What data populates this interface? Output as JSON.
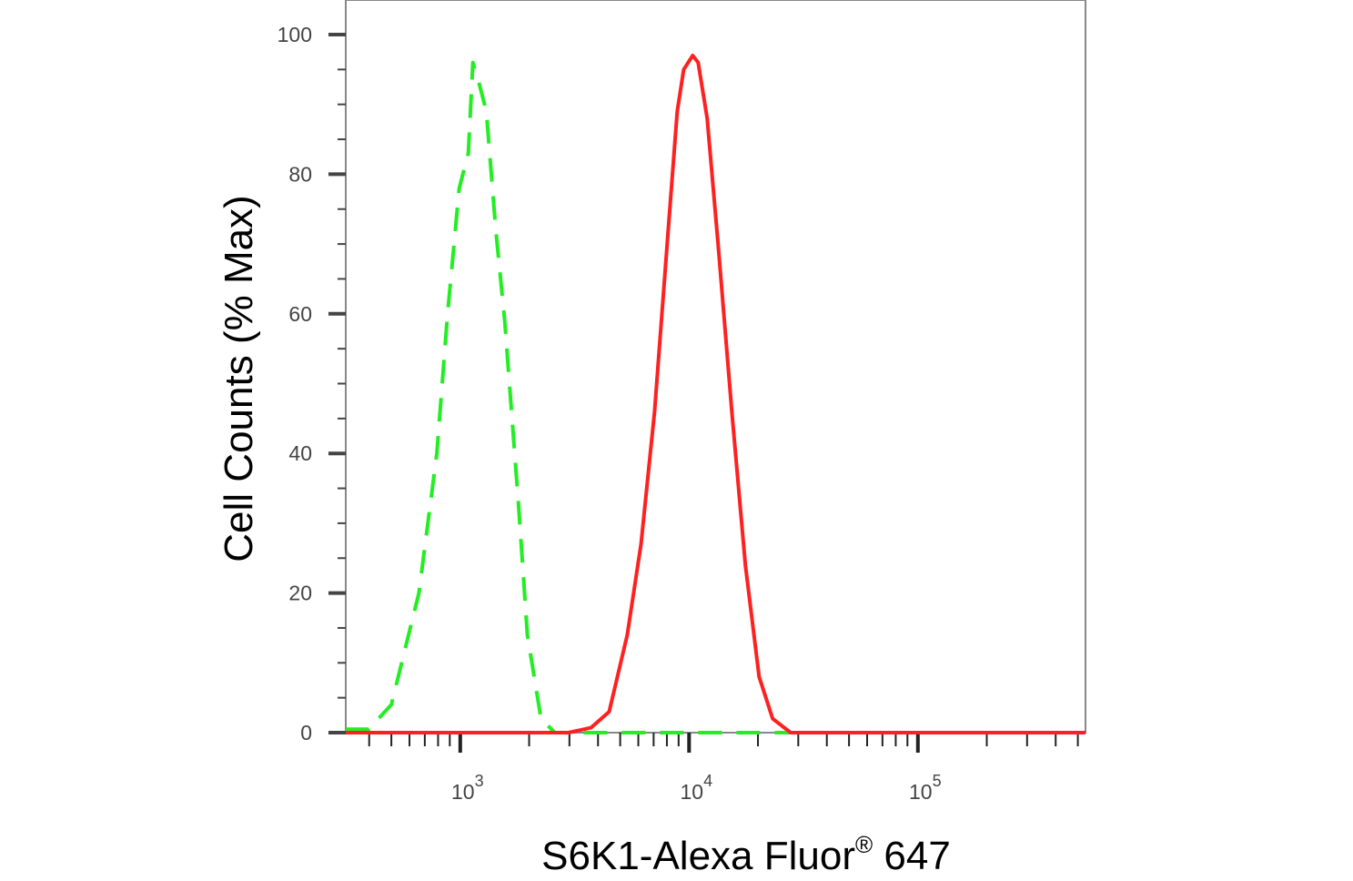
{
  "chart_data": {
    "type": "line",
    "title": "",
    "xlabel": "S6K1-Alexa Fluor",
    "xlabel_superscript": "®",
    "xlabel_suffix": " 647",
    "ylabel": "Cell Counts (% Max)",
    "xscale": "log",
    "xlim": [
      316,
      540000
    ],
    "ylim": [
      0,
      100
    ],
    "yticks": [
      0,
      20,
      40,
      60,
      80,
      100
    ],
    "xticks": [
      {
        "base": "10",
        "exp": "3",
        "value": 1000
      },
      {
        "base": "10",
        "exp": "4",
        "value": 10000
      },
      {
        "base": "10",
        "exp": "5",
        "value": 100000
      }
    ],
    "grid": false,
    "legend": "none",
    "series": [
      {
        "color": "#22ee22",
        "style": "dashed",
        "x": [
          316,
          398,
          500,
          660,
          790,
          880,
          990,
          1085,
          1135,
          1210,
          1300,
          1430,
          1565,
          1795,
          1965,
          2255,
          2590,
          540000
        ],
        "y": [
          0.5,
          0.5,
          4,
          20,
          40,
          60,
          78,
          83,
          96,
          93,
          89,
          72,
          59,
          33,
          14,
          2,
          0,
          0
        ]
      },
      {
        "color": "#ff2020",
        "style": "solid",
        "x": [
          316,
          2970,
          3725,
          4475,
          5370,
          6165,
          7070,
          8110,
          8880,
          9470,
          10370,
          10960,
          12000,
          13390,
          15370,
          17630,
          20230,
          23200,
          27810,
          540000
        ],
        "y": [
          0,
          0,
          0.7,
          3,
          14,
          27,
          46,
          72,
          89,
          95,
          97,
          96,
          88,
          70,
          46,
          24,
          8,
          2,
          0,
          0
        ]
      }
    ]
  }
}
